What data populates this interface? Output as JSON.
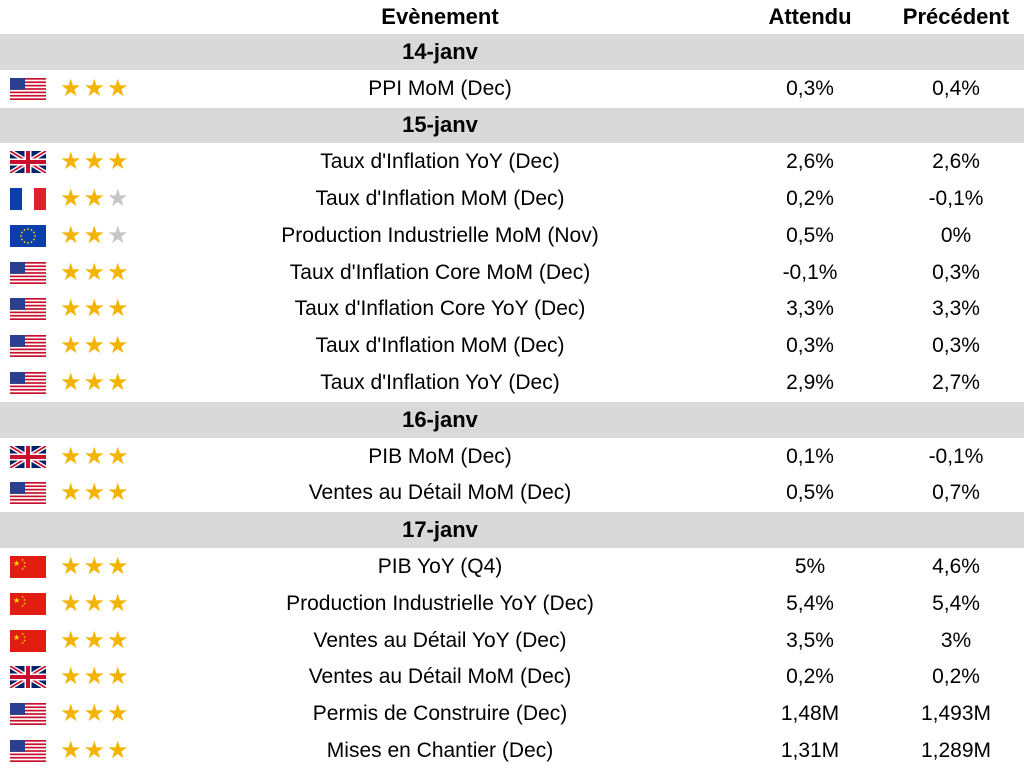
{
  "header": {
    "event": "Evènement",
    "expected": "Attendu",
    "previous": "Précédent"
  },
  "sections": [
    {
      "date": "14-janv",
      "events": [
        {
          "flag": "us",
          "stars": 3,
          "name": "PPI MoM (Dec)",
          "expected": "0,3%",
          "previous": "0,4%"
        }
      ]
    },
    {
      "date": "15-janv",
      "events": [
        {
          "flag": "uk",
          "stars": 3,
          "name": "Taux d'Inflation YoY (Dec)",
          "expected": "2,6%",
          "previous": "2,6%"
        },
        {
          "flag": "fr",
          "stars": 2,
          "name": "Taux d'Inflation MoM (Dec)",
          "expected": "0,2%",
          "previous": "-0,1%"
        },
        {
          "flag": "eu",
          "stars": 2,
          "name": "Production Industrielle MoM (Nov)",
          "expected": "0,5%",
          "previous": "0%"
        },
        {
          "flag": "us",
          "stars": 3,
          "name": "Taux d'Inflation Core MoM (Dec)",
          "expected": "-0,1%",
          "previous": "0,3%"
        },
        {
          "flag": "us",
          "stars": 3,
          "name": "Taux d'Inflation Core YoY (Dec)",
          "expected": "3,3%",
          "previous": "3,3%"
        },
        {
          "flag": "us",
          "stars": 3,
          "name": "Taux d'Inflation MoM (Dec)",
          "expected": "0,3%",
          "previous": "0,3%"
        },
        {
          "flag": "us",
          "stars": 3,
          "name": "Taux d'Inflation YoY (Dec)",
          "expected": "2,9%",
          "previous": "2,7%"
        }
      ]
    },
    {
      "date": "16-janv",
      "events": [
        {
          "flag": "uk",
          "stars": 3,
          "name": "PIB MoM (Dec)",
          "expected": "0,1%",
          "previous": "-0,1%"
        },
        {
          "flag": "us",
          "stars": 3,
          "name": "Ventes au Détail MoM (Dec)",
          "expected": "0,5%",
          "previous": "0,7%"
        }
      ]
    },
    {
      "date": "17-janv",
      "events": [
        {
          "flag": "cn",
          "stars": 3,
          "name": "PIB YoY (Q4)",
          "expected": "5%",
          "previous": "4,6%"
        },
        {
          "flag": "cn",
          "stars": 3,
          "name": "Production Industrielle YoY (Dec)",
          "expected": "5,4%",
          "previous": "5,4%"
        },
        {
          "flag": "cn",
          "stars": 3,
          "name": "Ventes au Détail YoY (Dec)",
          "expected": "3,5%",
          "previous": "3%"
        },
        {
          "flag": "uk",
          "stars": 3,
          "name": "Ventes au Détail MoM (Dec)",
          "expected": "0,2%",
          "previous": "0,2%"
        },
        {
          "flag": "us",
          "stars": 3,
          "name": "Permis de Construire (Dec)",
          "expected": "1,48M",
          "previous": "1,493M"
        },
        {
          "flag": "us",
          "stars": 3,
          "name": "Mises en Chantier (Dec)",
          "expected": "1,31M",
          "previous": "1,289M"
        }
      ]
    }
  ],
  "colors": {
    "date_band": "#d9d9d9",
    "star_on": "#f2b400",
    "star_off": "#c6c6c6"
  }
}
